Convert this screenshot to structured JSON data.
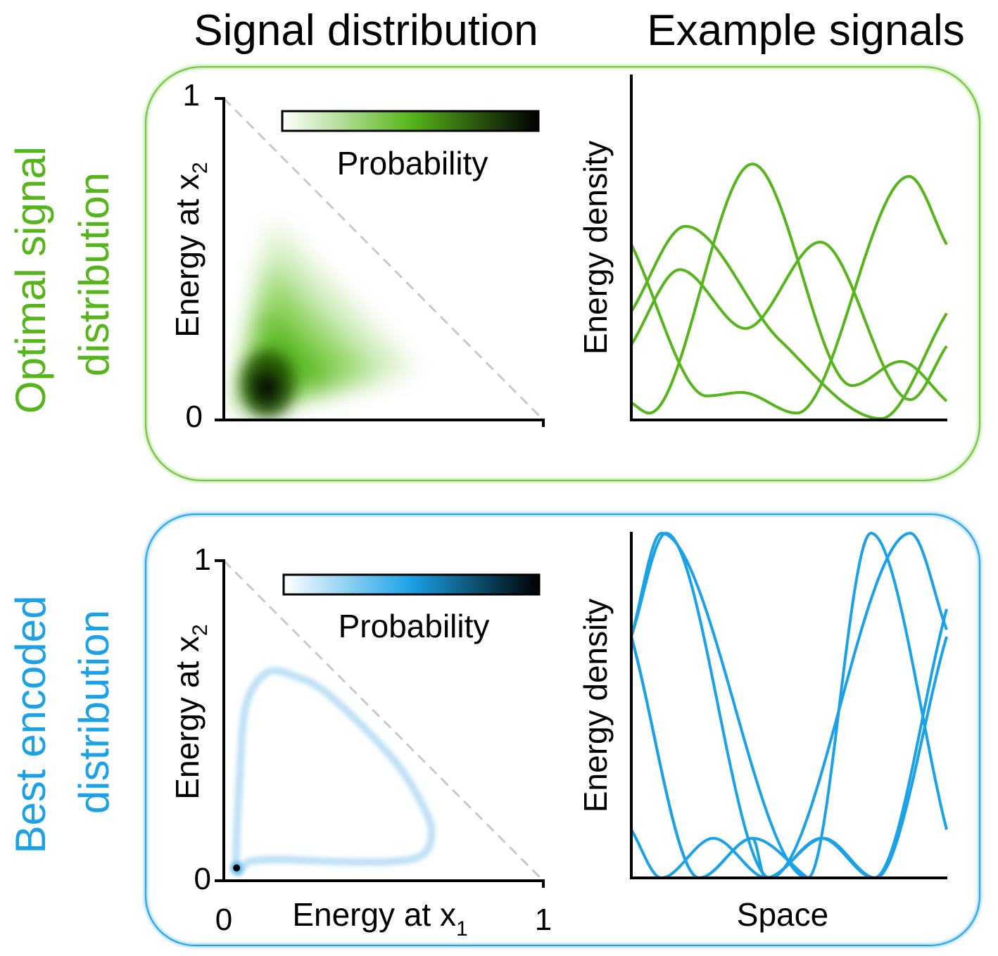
{
  "columns": {
    "left_title": "Signal distribution",
    "right_title": "Example signals"
  },
  "colors": {
    "optimal": "#57b51c",
    "best_encoded": "#1ba1e6",
    "optimal_frame": "#72c43e",
    "best_frame": "#2aa3e4",
    "diagonal": "#c8c8c8"
  },
  "rows": [
    {
      "id": "optimal",
      "label_line1": "Optimal signal",
      "label_line2": "distribution"
    },
    {
      "id": "best",
      "label_line1": "Best encoded",
      "label_line2": "distribution"
    }
  ],
  "chart_data": [
    {
      "type": "heatmap",
      "panel": "optimal-signal-distribution",
      "ylabel": "Energy at x",
      "ylabel_sub": "2",
      "xlim": [
        0,
        1
      ],
      "ylim": [
        0,
        1
      ],
      "yticks": [
        "0",
        "1"
      ],
      "colorbar_label": "Probability",
      "colormap": [
        "#ffffff",
        "#57b51c",
        "#000000"
      ],
      "simplex_boundary": "x1 + x2 = 1 (dashed)",
      "density_mode": [
        0.12,
        0.1
      ],
      "density_extent": [
        [
          0.03,
          0.02
        ],
        [
          0.15,
          0.62
        ],
        [
          0.6,
          0.15
        ]
      ]
    },
    {
      "type": "line",
      "panel": "optimal-example-signals",
      "ylabel": "Energy density",
      "xlim": [
        0,
        1
      ],
      "ylim": [
        0,
        1
      ],
      "series": [
        {
          "points": [
            [
              0,
              0.05
            ],
            [
              0.057,
              0.02
            ],
            [
              0.384,
              0.744
            ],
            [
              0.7,
              0.1
            ],
            [
              0.855,
              0.17
            ],
            [
              1,
              0.055
            ]
          ]
        },
        {
          "points": [
            [
              0,
              0.51
            ],
            [
              0.239,
              0.07
            ],
            [
              0.35,
              0.08
            ],
            [
              0.525,
              0.02
            ],
            [
              0.881,
              0.708
            ],
            [
              1,
              0.51
            ]
          ]
        },
        {
          "points": [
            [
              0,
              0.315
            ],
            [
              0.172,
              0.563
            ],
            [
              0.47,
              0.233
            ],
            [
              0.792,
              0.004
            ],
            [
              1,
              0.31
            ]
          ]
        },
        {
          "points": [
            [
              0,
              0.219
            ],
            [
              0.154,
              0.437
            ],
            [
              0.362,
              0.266
            ],
            [
              0.599,
              0.517
            ],
            [
              0.885,
              0.059
            ],
            [
              1,
              0.215
            ]
          ]
        }
      ]
    },
    {
      "type": "heatmap",
      "panel": "best-encoded-distribution",
      "xlabel": "Energy at x",
      "xlabel_sub": "1",
      "ylabel": "Energy at x",
      "ylabel_sub": "2",
      "xlim": [
        0,
        1
      ],
      "ylim": [
        0,
        1
      ],
      "xticks": [
        "0",
        "1"
      ],
      "yticks": [
        "0",
        "1"
      ],
      "colorbar_label": "Probability",
      "colormap": [
        "#ffffff",
        "#1ba1e6",
        "#000000"
      ],
      "simplex_boundary": "x1 + x2 = 1 (dashed)",
      "density_peak": [
        0.04,
        0.04
      ],
      "density_ridge": [
        [
          0.04,
          0.04
        ],
        [
          0.05,
          0.33
        ],
        [
          0.07,
          0.55
        ],
        [
          0.135,
          0.65
        ],
        [
          0.22,
          0.64
        ],
        [
          0.33,
          0.58
        ],
        [
          0.53,
          0.38
        ],
        [
          0.63,
          0.22
        ],
        [
          0.65,
          0.14
        ],
        [
          0.62,
          0.08
        ],
        [
          0.53,
          0.06
        ],
        [
          0.35,
          0.06
        ],
        [
          0.18,
          0.066
        ],
        [
          0.08,
          0.06
        ]
      ]
    },
    {
      "type": "line",
      "panel": "best-encoded-example-signals",
      "ylabel": "Energy density",
      "xlabel": "Space",
      "xlim": [
        0,
        1
      ],
      "ylim": [
        0,
        1
      ],
      "series": [
        {
          "points": [
            [
              0,
              0.7
            ],
            [
              0.095,
              1
            ],
            [
              0.56,
              0
            ],
            [
              0.76,
              1
            ],
            [
              1,
              0.14
            ]
          ]
        },
        {
          "points": [
            [
              0,
              0.7
            ],
            [
              0.11,
              1
            ],
            [
              0.44,
              0
            ],
            [
              0.885,
              1
            ],
            [
              1,
              0.72
            ]
          ]
        },
        {
          "points": [
            [
              0,
              0.7
            ],
            [
              0.215,
              0
            ],
            [
              0.385,
              0.115
            ],
            [
              0.425,
              0.0
            ],
            [
              0.61,
              0.115
            ],
            [
              0.775,
              0
            ],
            [
              1,
              0.7
            ]
          ]
        },
        {
          "points": [
            [
              0,
              0.14
            ],
            [
              0.095,
              0
            ],
            [
              0.26,
              0.115
            ],
            [
              0.43,
              0
            ],
            [
              0.603,
              0.115
            ],
            [
              0.77,
              0
            ],
            [
              1,
              0.78
            ]
          ]
        },
        {
          "points": [
            [
              0,
              0.7
            ],
            [
              0.215,
              0
            ],
            [
              0.385,
              0.115
            ],
            [
              0.56,
              0
            ]
          ]
        }
      ]
    }
  ]
}
